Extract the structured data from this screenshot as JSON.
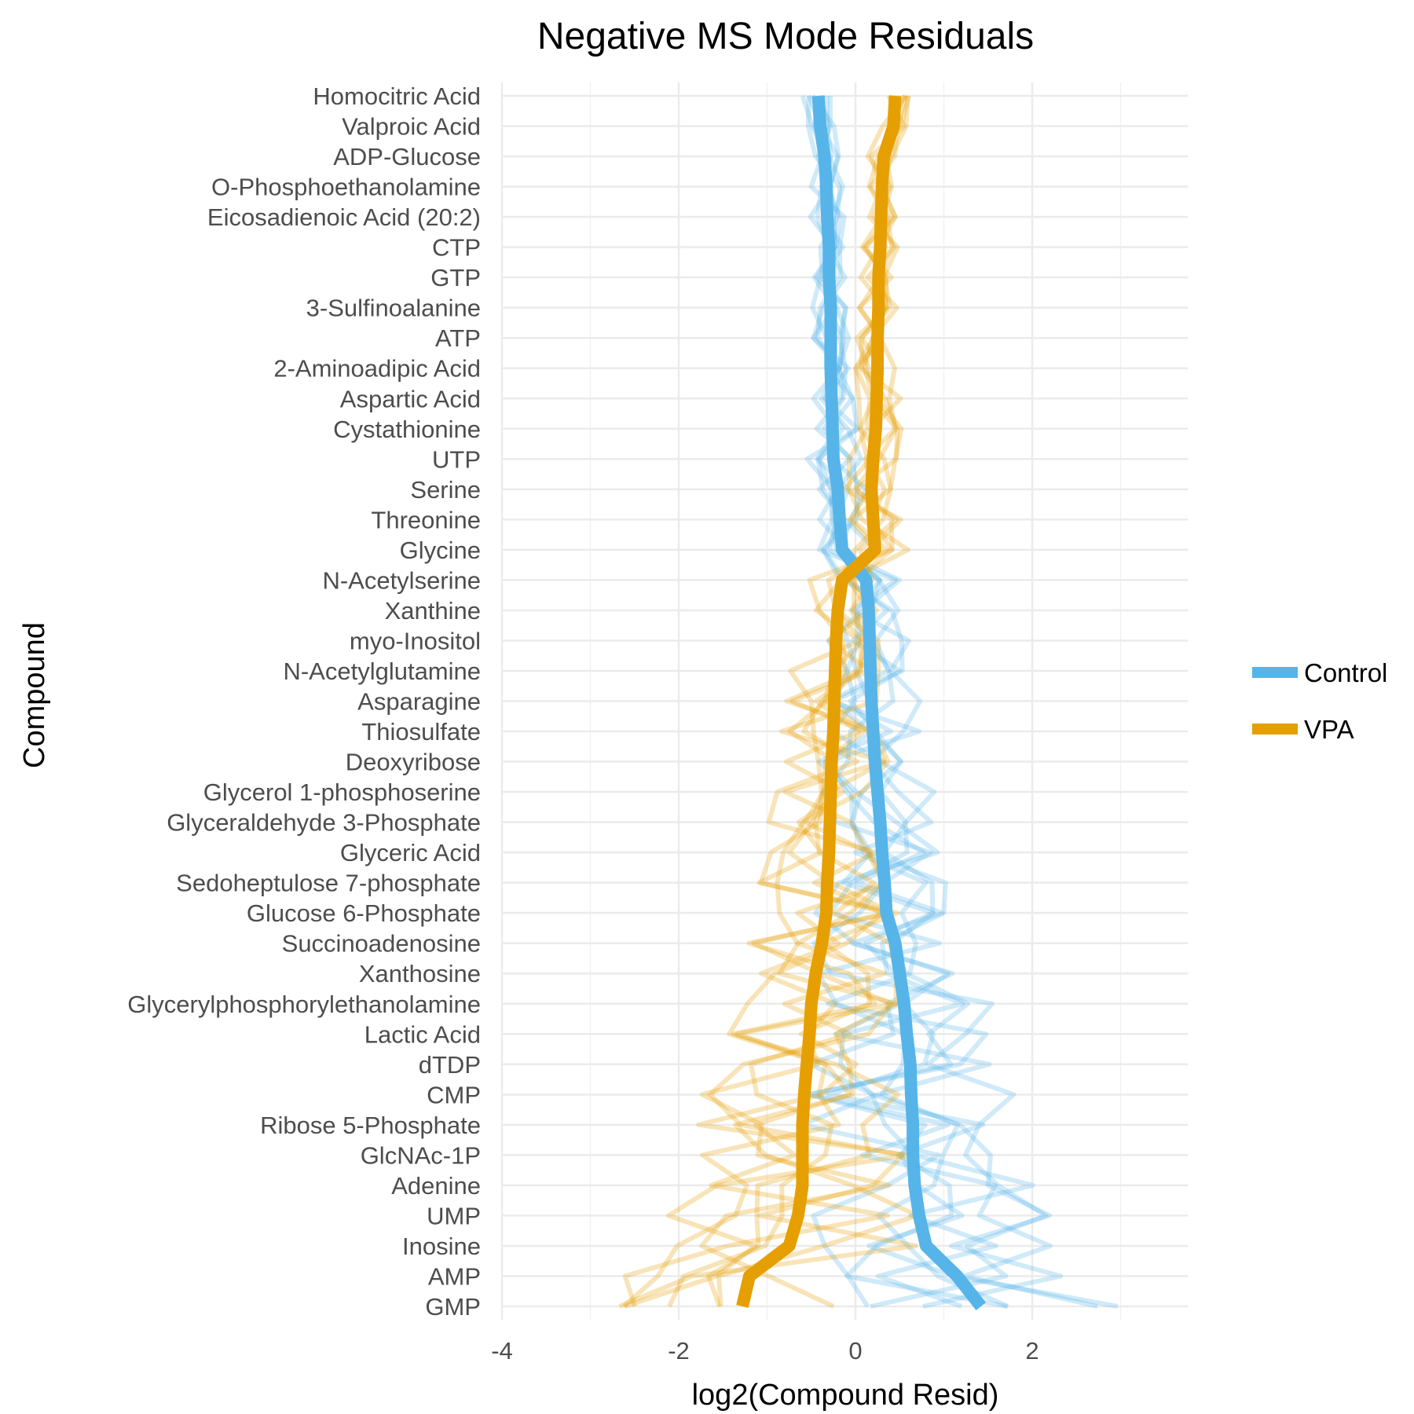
{
  "chart_data": {
    "type": "line",
    "title": "Negative MS Mode Residuals",
    "xlabel": "log2(Compound Resid)",
    "ylabel": "Compound",
    "xlim": [
      -4,
      3.8
    ],
    "xticks": [
      -4,
      -2,
      0,
      2
    ],
    "xtick_labels": [
      "-4",
      "-2",
      "0",
      "2"
    ],
    "grid": true,
    "legend": {
      "placement": "right",
      "entries": [
        "Control",
        "VPA"
      ]
    },
    "colors": {
      "Control": "#56B4E9",
      "VPA": "#E69F00"
    },
    "categories": [
      "Homocitric Acid",
      "Valproic Acid",
      "ADP-Glucose",
      "O-Phosphoethanolamine",
      "Eicosadienoic Acid (20:2)",
      "CTP",
      "GTP",
      "3-Sulfinoalanine",
      "ATP",
      "2-Aminoadipic Acid",
      "Aspartic Acid",
      "Cystathionine",
      "UTP",
      "Serine",
      "Threonine",
      "Glycine",
      "N-Acetylserine",
      "Xanthine",
      "myo-Inositol",
      "N-Acetylglutamine",
      "Asparagine",
      "Thiosulfate",
      "Deoxyribose",
      "Glycerol 1-phosphoserine",
      "Glyceraldehyde 3-Phosphate",
      "Glyceric Acid",
      "Sedoheptulose 7-phosphate",
      "Glucose 6-Phosphate",
      "Succinoadenosine",
      "Xanthosine",
      "Glycerylphosphorylethanolamine",
      "Lactic Acid",
      "dTDP",
      "CMP",
      "Ribose 5-Phosphate",
      "GlcNAc-1P",
      "Adenine",
      "UMP",
      "Inosine",
      "AMP",
      "GMP"
    ],
    "series": [
      {
        "name": "Control",
        "values": [
          -0.42,
          -0.4,
          -0.35,
          -0.33,
          -0.32,
          -0.3,
          -0.3,
          -0.28,
          -0.28,
          -0.28,
          -0.27,
          -0.26,
          -0.25,
          -0.2,
          -0.18,
          -0.15,
          0.12,
          0.15,
          0.16,
          0.17,
          0.18,
          0.2,
          0.22,
          0.25,
          0.28,
          0.3,
          0.33,
          0.35,
          0.45,
          0.5,
          0.55,
          0.58,
          0.62,
          0.63,
          0.65,
          0.65,
          0.67,
          0.72,
          0.8,
          1.15,
          1.42
        ]
      },
      {
        "name": "VPA",
        "values": [
          0.45,
          0.43,
          0.32,
          0.3,
          0.29,
          0.28,
          0.26,
          0.26,
          0.25,
          0.25,
          0.24,
          0.23,
          0.2,
          0.18,
          0.2,
          0.22,
          -0.15,
          -0.2,
          -0.22,
          -0.23,
          -0.24,
          -0.25,
          -0.27,
          -0.28,
          -0.29,
          -0.3,
          -0.32,
          -0.33,
          -0.38,
          -0.45,
          -0.5,
          -0.52,
          -0.55,
          -0.58,
          -0.6,
          -0.6,
          -0.6,
          -0.65,
          -0.75,
          -1.2,
          -1.28
        ]
      }
    ]
  }
}
